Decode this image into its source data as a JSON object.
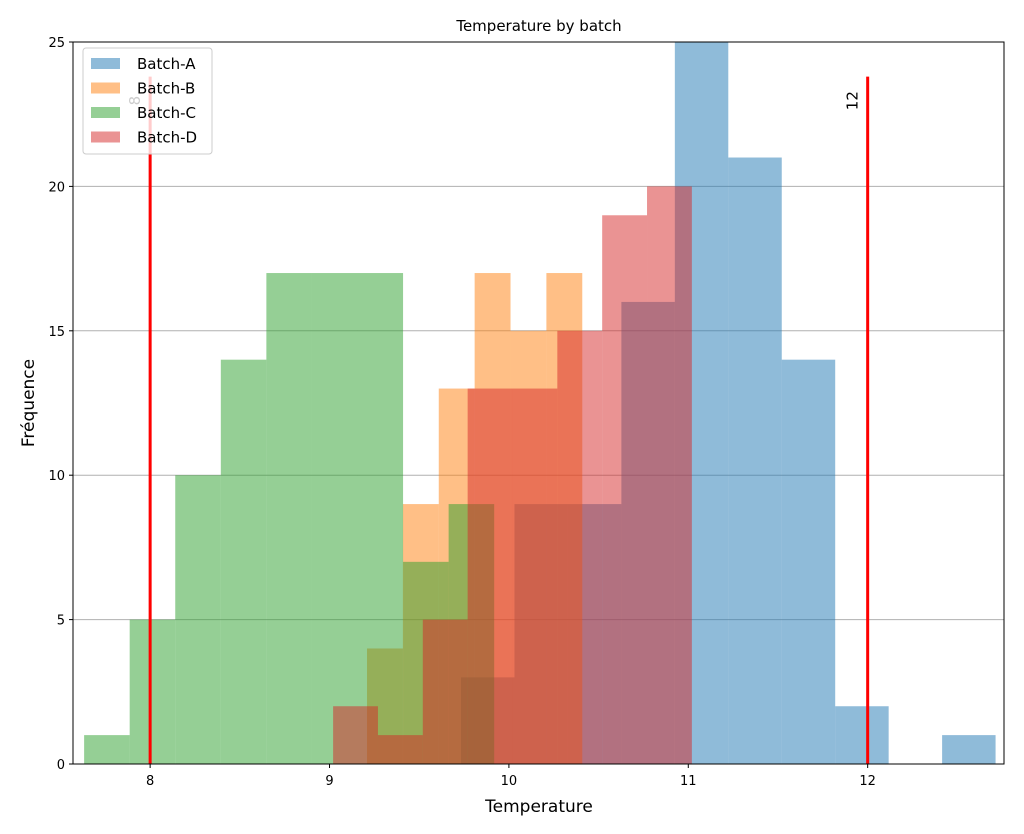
{
  "chart_data": {
    "type": "bar",
    "subtype": "overlapping-histogram",
    "title": "Temperature by batch",
    "xlabel": "Temperature",
    "ylabel": "Fréquence",
    "xlim": [
      7.57,
      12.76
    ],
    "ylim": [
      0,
      25
    ],
    "xticks": [
      8,
      9,
      10,
      11,
      12
    ],
    "yticks": [
      0,
      5,
      10,
      15,
      20,
      25
    ],
    "grid": "horizontal",
    "legend_position": "top-left",
    "series": [
      {
        "name": "Batch-A",
        "color": "#1f77b4",
        "alpha": 0.5,
        "bin_start": 9.733,
        "bin_width": 0.298,
        "counts": [
          3,
          9,
          9,
          16,
          25,
          21,
          14,
          2,
          0,
          1
        ]
      },
      {
        "name": "Batch-B",
        "color": "#ff7f0e",
        "alpha": 0.5,
        "bin_start": 9.209,
        "bin_width": 0.2,
        "counts": [
          4,
          9,
          13,
          17,
          15,
          17
        ]
      },
      {
        "name": "Batch-C",
        "color": "#2ca02c",
        "alpha": 0.5,
        "bin_start": 7.632,
        "bin_width": 0.254,
        "counts": [
          1,
          5,
          10,
          14,
          17,
          17,
          17,
          7,
          9
        ]
      },
      {
        "name": "Batch-D",
        "color": "#d62728",
        "alpha": 0.5,
        "bin_start": 9.02,
        "bin_width": 0.25,
        "counts": [
          2,
          1,
          5,
          13,
          13,
          15,
          19,
          20
        ]
      }
    ],
    "vlines": [
      {
        "x": 8,
        "label": "8",
        "ymax": 23.8,
        "color": "#ff0000"
      },
      {
        "x": 12,
        "label": "12",
        "ymax": 23.8,
        "color": "#ff0000"
      }
    ]
  }
}
